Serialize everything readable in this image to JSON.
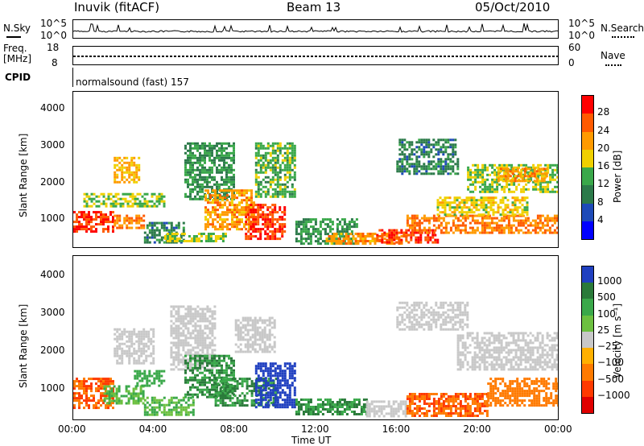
{
  "header": {
    "station": "Inuvik (fitACF)",
    "beam": "Beam 13",
    "date": "05/Oct/2010"
  },
  "top_panels": {
    "nsky_label": "N.Sky",
    "nsky_ticks": [
      "10^5",
      "10^0"
    ],
    "nsearch_label": "N.Search",
    "nsearch_ticks": [
      "10^5",
      "10^0"
    ],
    "freq_label": "Freq.",
    "freq_unit": "[MHz]",
    "freq_ticks": [
      "18",
      "8"
    ],
    "nave_label": "Nave",
    "nave_ticks": [
      "60",
      "0"
    ],
    "cpid_label": "CPID",
    "cpid_text": "normalsound (fast) 157"
  },
  "chart_data": [
    {
      "type": "heatmap",
      "name": "power",
      "ylabel": "Slant Range [km]",
      "y_ticks": [
        "4000",
        "3000",
        "2000",
        "1000"
      ],
      "ylim": [
        200,
        4500
      ],
      "xlim_hours": [
        0,
        24
      ],
      "colorbar_label": "Power [dB]",
      "colorbar_ticks": [
        "28",
        "24",
        "20",
        "16",
        "12",
        "8",
        "4"
      ],
      "colorbar_colors": [
        "#ff0000",
        "#ff5a00",
        "#ff9a00",
        "#f0d000",
        "#3aa84a",
        "#2c7a4a",
        "#1e4ab8",
        "#0000ff"
      ],
      "regions": [
        {
          "t": [
            0.0,
            2.0
          ],
          "r": [
            600,
            1200
          ],
          "level": 28
        },
        {
          "t": [
            2.0,
            3.5
          ],
          "r": [
            700,
            1100
          ],
          "level": 24
        },
        {
          "t": [
            2.0,
            3.2
          ],
          "r": [
            2000,
            2700
          ],
          "level": 20
        },
        {
          "t": [
            0.5,
            4.5
          ],
          "r": [
            1300,
            1700
          ],
          "level": 16
        },
        {
          "t": [
            3.5,
            5.5
          ],
          "r": [
            300,
            900
          ],
          "level": 10
        },
        {
          "t": [
            4.5,
            7.5
          ],
          "r": [
            350,
            600
          ],
          "level": 16
        },
        {
          "t": [
            5.5,
            8.0
          ],
          "r": [
            1500,
            3100
          ],
          "level": 12
        },
        {
          "t": [
            6.5,
            9.0
          ],
          "r": [
            700,
            1800
          ],
          "level": 22
        },
        {
          "t": [
            8.5,
            10.5
          ],
          "r": [
            400,
            1400
          ],
          "level": 28
        },
        {
          "t": [
            9.0,
            11.0
          ],
          "r": [
            1600,
            3100
          ],
          "level": 14
        },
        {
          "t": [
            11.0,
            14.0
          ],
          "r": [
            300,
            1000
          ],
          "level": 12
        },
        {
          "t": [
            12.5,
            16.5
          ],
          "r": [
            300,
            600
          ],
          "level": 22
        },
        {
          "t": [
            15.0,
            18.0
          ],
          "r": [
            300,
            700
          ],
          "level": 28
        },
        {
          "t": [
            16.0,
            19.0
          ],
          "r": [
            2200,
            3200
          ],
          "level": 10
        },
        {
          "t": [
            16.5,
            24.0
          ],
          "r": [
            600,
            1100
          ],
          "level": 24
        },
        {
          "t": [
            18.0,
            22.5
          ],
          "r": [
            1100,
            1600
          ],
          "level": 18
        },
        {
          "t": [
            19.5,
            24.0
          ],
          "r": [
            1700,
            2500
          ],
          "level": 16
        },
        {
          "t": [
            21.0,
            23.5
          ],
          "r": [
            2000,
            2400
          ],
          "level": 22
        }
      ]
    },
    {
      "type": "heatmap",
      "name": "velocity",
      "ylabel": "Slant Range [km]",
      "y_ticks": [
        "4000",
        "3000",
        "2000",
        "1000"
      ],
      "ylim": [
        200,
        4500
      ],
      "xlim_hours": [
        0,
        24
      ],
      "colorbar_label": "Velocity [m s⁻¹]",
      "colorbar_ticks": [
        "1000",
        "500",
        "100",
        "25",
        "−25",
        "−100",
        "−500",
        "−1000"
      ],
      "colorbar_colors": [
        "#2040c0",
        "#2a7a3a",
        "#3aa84a",
        "#6cc040",
        "#c8c8c8",
        "#ffb000",
        "#ff7a00",
        "#ff3a00",
        "#e00000"
      ],
      "regions": [
        {
          "t": [
            0.0,
            2.0
          ],
          "r": [
            500,
            1300
          ],
          "level": -300
        },
        {
          "t": [
            1.5,
            3.5
          ],
          "r": [
            600,
            1100
          ],
          "level": 60
        },
        {
          "t": [
            2.0,
            4.0
          ],
          "r": [
            1700,
            2600
          ],
          "level": 0
        },
        {
          "t": [
            3.0,
            4.5
          ],
          "r": [
            1100,
            1500
          ],
          "level": 200
        },
        {
          "t": [
            3.5,
            6.0
          ],
          "r": [
            300,
            800
          ],
          "level": 60
        },
        {
          "t": [
            4.8,
            7.0
          ],
          "r": [
            1500,
            3200
          ],
          "level": 0
        },
        {
          "t": [
            5.5,
            8.0
          ],
          "r": [
            800,
            1900
          ],
          "level": 300
        },
        {
          "t": [
            7.0,
            10.0
          ],
          "r": [
            600,
            1300
          ],
          "level": 300
        },
        {
          "t": [
            9.0,
            11.0
          ],
          "r": [
            500,
            1700
          ],
          "level": 800
        },
        {
          "t": [
            8.0,
            10.0
          ],
          "r": [
            2000,
            2900
          ],
          "level": 0
        },
        {
          "t": [
            11.0,
            14.5
          ],
          "r": [
            350,
            750
          ],
          "level": 300
        },
        {
          "t": [
            14.5,
            16.5
          ],
          "r": [
            300,
            700
          ],
          "level": 0
        },
        {
          "t": [
            16.0,
            19.5
          ],
          "r": [
            2600,
            3300
          ],
          "level": 0
        },
        {
          "t": [
            16.5,
            20.5
          ],
          "r": [
            300,
            900
          ],
          "level": -300
        },
        {
          "t": [
            19.0,
            24.0
          ],
          "r": [
            1500,
            2500
          ],
          "level": 0
        },
        {
          "t": [
            20.5,
            24.0
          ],
          "r": [
            600,
            1300
          ],
          "level": -200
        }
      ]
    }
  ],
  "x_axis": {
    "ticks": [
      "00:00",
      "04:00",
      "08:00",
      "12:00",
      "16:00",
      "20:00",
      "00:00"
    ],
    "label": "Time UT"
  }
}
